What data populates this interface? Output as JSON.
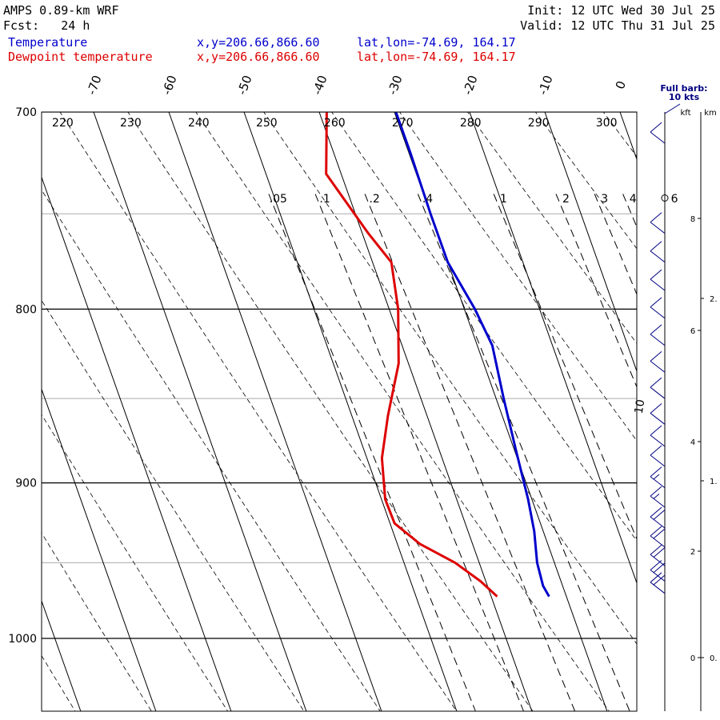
{
  "header": {
    "model": "AMPS 0.89-km WRF",
    "fcst": "Fcst:   24 h",
    "init": "Init: 12 UTC Wed 30 Jul 25",
    "valid": "Valid: 12 UTC Thu 31 Jul 25"
  },
  "legend": {
    "temperature": {
      "name": "Temperature",
      "xy": "x,y=206.66,866.60",
      "latlon": "lat,lon=-74.69, 164.17",
      "color": "#0000cc"
    },
    "dewpoint": {
      "name": "Dewpoint temperature",
      "xy": "x,y=206.66,866.60",
      "latlon": "lat,lon=-74.69, 164.17",
      "color": "#dd0000"
    }
  },
  "wind_panel": {
    "full_barb_label": "Full barb:",
    "full_barb_value": "10 kts",
    "kft_label": "kft",
    "km_label": "km",
    "kft_ticks": [
      "8",
      "6",
      "4",
      "2",
      "0"
    ],
    "km_ticks": [
      "2.",
      "1.",
      "0."
    ],
    "color": "#000080"
  },
  "chart_data": {
    "type": "line",
    "title": "AMPS 0.89-km WRF",
    "diagram": "skew-T log-P",
    "y_axis": {
      "label": "",
      "unit": "hPa",
      "range": [
        1050,
        700
      ],
      "scale": "log",
      "ticks": [
        700,
        800,
        900,
        1000
      ]
    },
    "isotherm_labels": [
      "-70",
      "-60",
      "-50",
      "-40",
      "-30",
      "-20",
      "-10",
      "0"
    ],
    "dry_adiabat_labels": [
      "220",
      "230",
      "240",
      "250",
      "260",
      "270",
      "280",
      "290",
      "300"
    ],
    "mixing_ratio_labels": [
      ".05",
      ".1",
      ".2",
      ".4",
      "1",
      "2",
      "3",
      "4",
      "6"
    ],
    "series": [
      {
        "name": "Temperature",
        "color": "#0000cc",
        "points": [
          {
            "p": 700,
            "t": -29.8
          },
          {
            "p": 720,
            "t": -29.8
          },
          {
            "p": 750,
            "t": -30.0
          },
          {
            "p": 775,
            "t": -30.0
          },
          {
            "p": 800,
            "t": -28.6
          },
          {
            "p": 820,
            "t": -28.0
          },
          {
            "p": 850,
            "t": -29.0
          },
          {
            "p": 880,
            "t": -29.8
          },
          {
            "p": 910,
            "t": -30.5
          },
          {
            "p": 930,
            "t": -31.2
          },
          {
            "p": 950,
            "t": -32.3
          },
          {
            "p": 965,
            "t": -32.6
          },
          {
            "p": 972,
            "t": -32.3
          }
        ]
      },
      {
        "name": "Dewpoint temperature",
        "color": "#dd0000",
        "points": [
          {
            "p": 700,
            "t": -39.0
          },
          {
            "p": 730,
            "t": -42.0
          },
          {
            "p": 760,
            "t": -39.2
          },
          {
            "p": 775,
            "t": -37.5
          },
          {
            "p": 800,
            "t": -38.8
          },
          {
            "p": 830,
            "t": -41.3
          },
          {
            "p": 860,
            "t": -45.2
          },
          {
            "p": 885,
            "t": -48.0
          },
          {
            "p": 910,
            "t": -49.5
          },
          {
            "p": 925,
            "t": -49.4
          },
          {
            "p": 938,
            "t": -47.0
          },
          {
            "p": 950,
            "t": -43.2
          },
          {
            "p": 962,
            "t": -40.7
          },
          {
            "p": 972,
            "t": -39.2
          }
        ]
      }
    ],
    "wind_barbs": [
      {
        "p": 715,
        "kts": 10
      },
      {
        "p": 742,
        "kts": 0
      },
      {
        "p": 760,
        "kts": 10
      },
      {
        "p": 775,
        "kts": 10
      },
      {
        "p": 790,
        "kts": 10
      },
      {
        "p": 805,
        "kts": 10
      },
      {
        "p": 820,
        "kts": 10
      },
      {
        "p": 835,
        "kts": 10
      },
      {
        "p": 850,
        "kts": 10
      },
      {
        "p": 865,
        "kts": 10
      },
      {
        "p": 878,
        "kts": 10
      },
      {
        "p": 890,
        "kts": 10
      },
      {
        "p": 903,
        "kts": 15
      },
      {
        "p": 915,
        "kts": 15
      },
      {
        "p": 928,
        "kts": 20
      },
      {
        "p": 940,
        "kts": 20
      },
      {
        "p": 952,
        "kts": 20
      },
      {
        "p": 962,
        "kts": 20
      },
      {
        "p": 970,
        "kts": 20
      }
    ],
    "annotations": [
      "10"
    ]
  }
}
